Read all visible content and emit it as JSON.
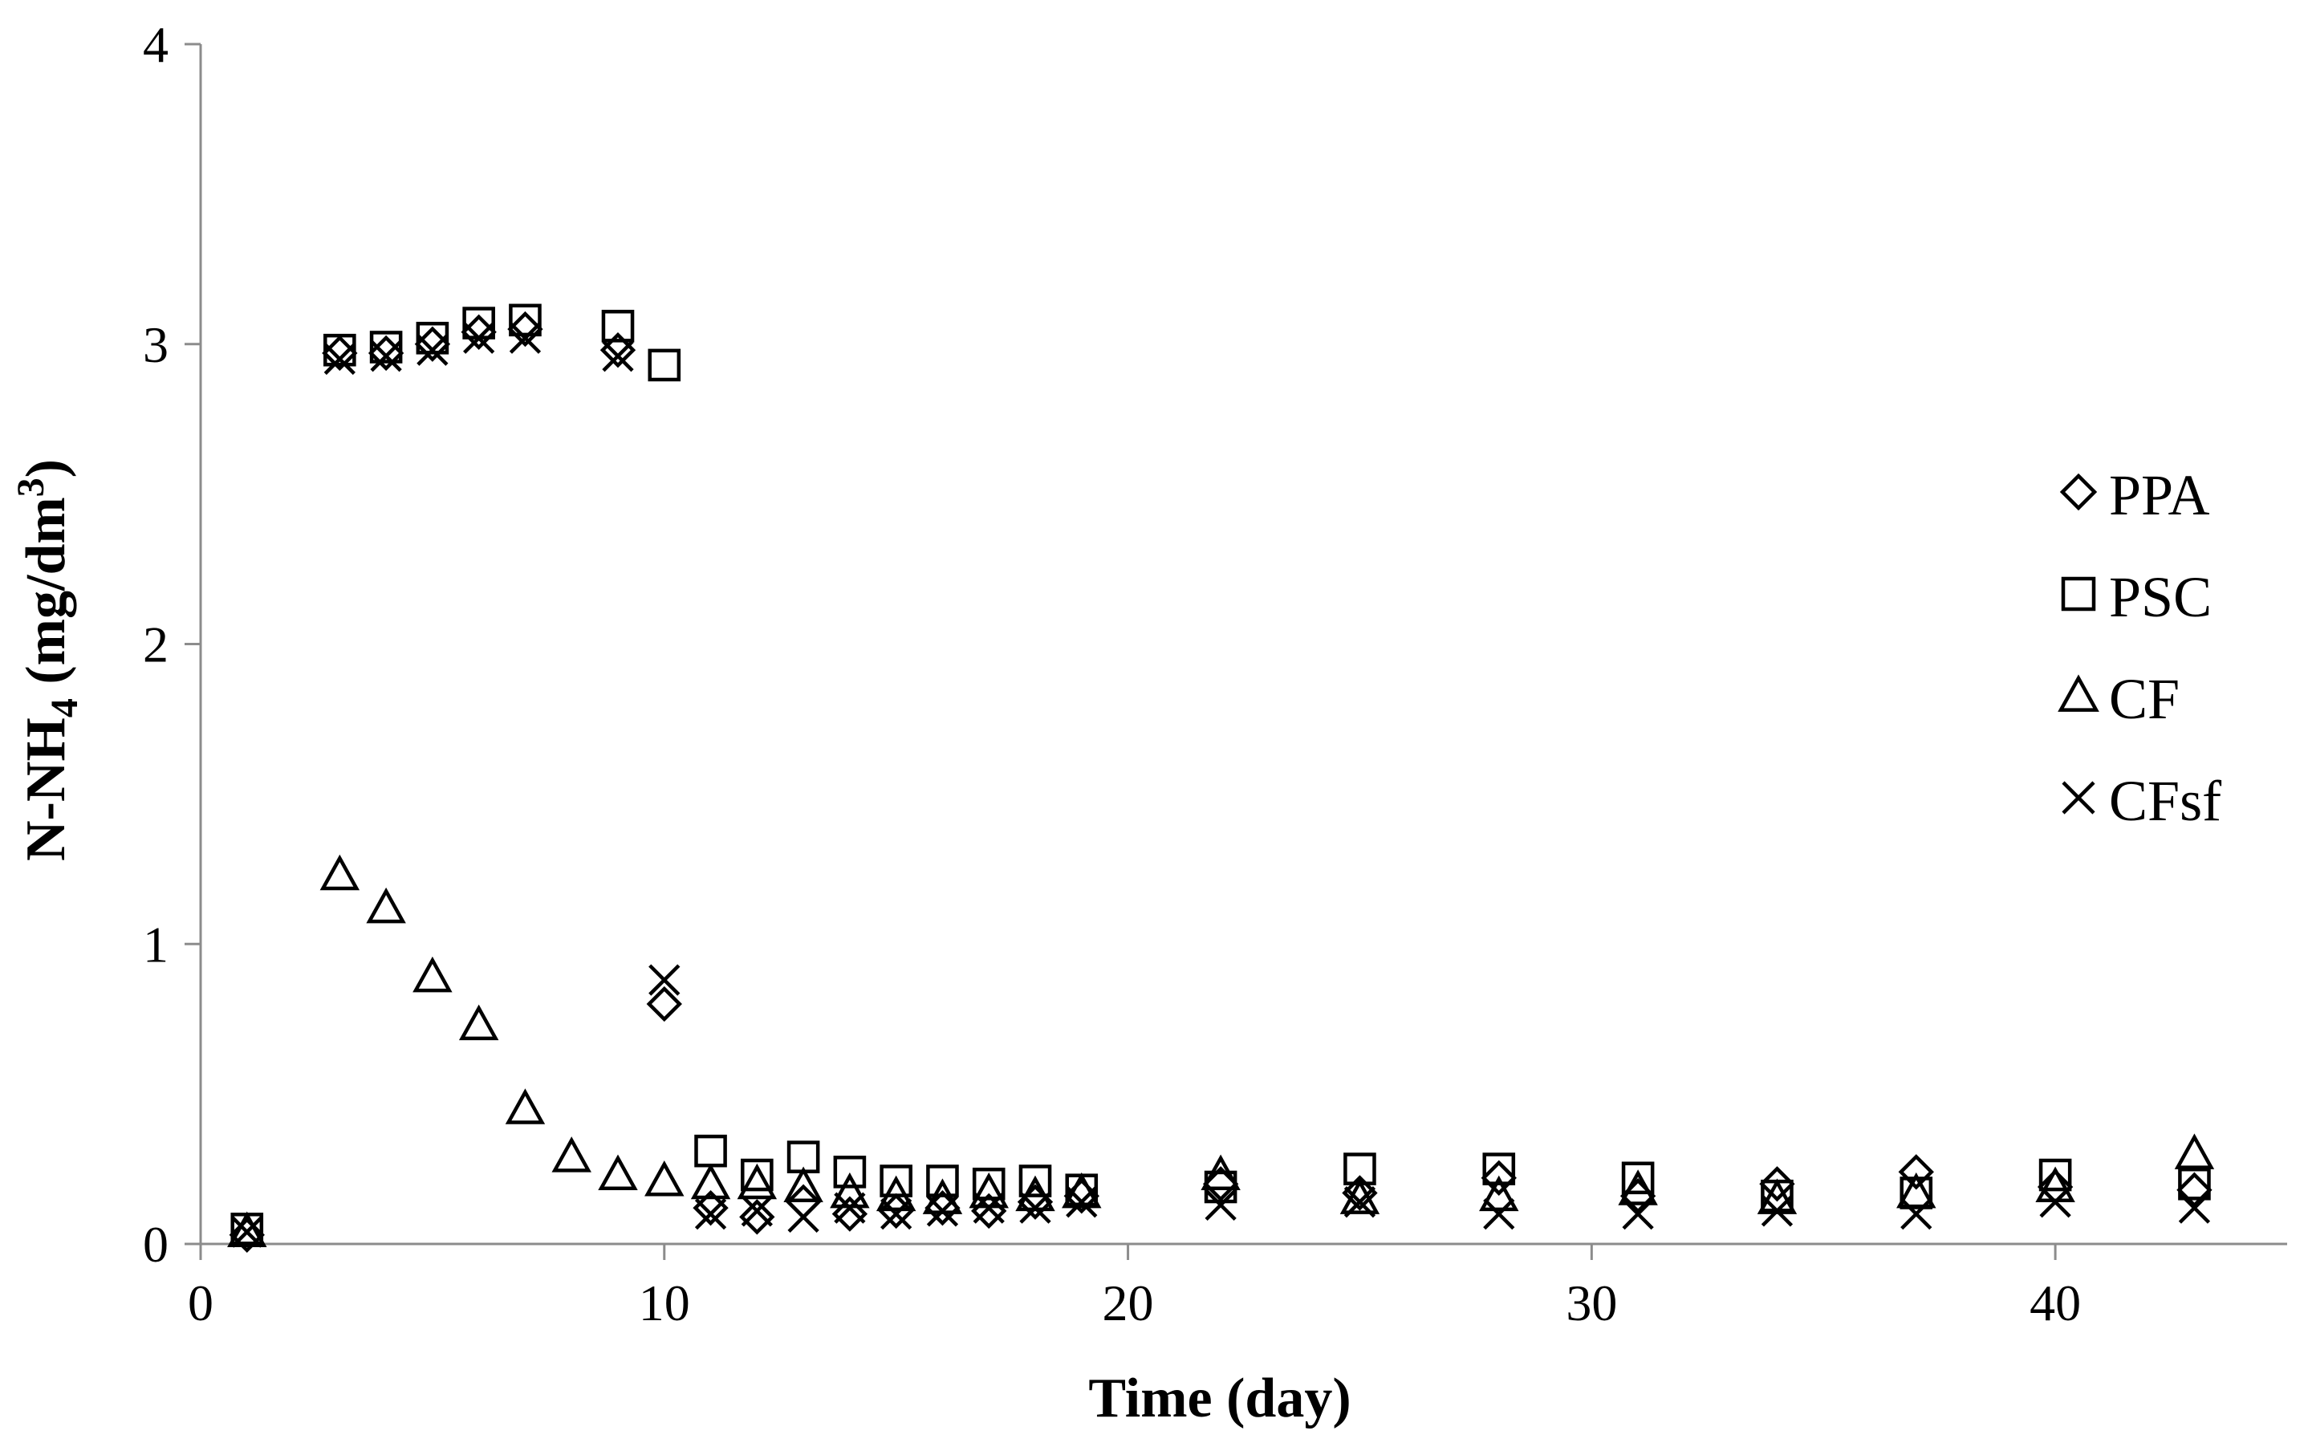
{
  "chart_data": {
    "type": "scatter",
    "xlabel": "Time (day)",
    "ylabel": {
      "prefix": "N-NH",
      "sub": "4",
      "unit_prefix": " (mg/dm",
      "sup": "3",
      "unit_suffix": ")"
    },
    "xlim": [
      0,
      45
    ],
    "ylim": [
      0,
      4
    ],
    "xticks": [
      0,
      10,
      20,
      30,
      40
    ],
    "yticks": [
      0,
      1,
      2,
      3,
      4
    ],
    "grid": false,
    "legend_position": "right",
    "series": [
      {
        "name": "PPA",
        "marker": "diamond",
        "x": [
          1,
          3,
          4,
          5,
          6,
          7,
          9,
          10,
          11,
          12,
          13,
          14,
          15,
          16,
          17,
          18,
          19,
          22,
          25,
          28,
          31,
          34,
          37,
          40,
          43
        ],
        "y": [
          0.03,
          2.97,
          2.97,
          3.0,
          3.04,
          3.05,
          2.98,
          0.8,
          0.12,
          0.09,
          0.14,
          0.1,
          0.11,
          0.12,
          0.11,
          0.14,
          0.16,
          0.2,
          0.17,
          0.22,
          0.16,
          0.2,
          0.24,
          0.19,
          0.18
        ]
      },
      {
        "name": "PSC",
        "marker": "square",
        "x": [
          1,
          3,
          4,
          5,
          6,
          7,
          9,
          10,
          11,
          12,
          13,
          14,
          15,
          16,
          17,
          18,
          19,
          22,
          25,
          28,
          31,
          34,
          37,
          40,
          43
        ],
        "y": [
          0.05,
          2.98,
          2.99,
          3.02,
          3.07,
          3.08,
          3.06,
          2.93,
          0.31,
          0.23,
          0.29,
          0.24,
          0.21,
          0.21,
          0.2,
          0.21,
          0.18,
          0.19,
          0.25,
          0.25,
          0.22,
          0.16,
          0.17,
          0.23,
          0.2
        ]
      },
      {
        "name": "CF",
        "marker": "triangle",
        "x": [
          1,
          3,
          4,
          5,
          6,
          7,
          8,
          9,
          10,
          11,
          12,
          13,
          14,
          15,
          16,
          17,
          18,
          19,
          22,
          25,
          28,
          31,
          34,
          37,
          40,
          43
        ],
        "y": [
          0.04,
          1.23,
          1.12,
          0.89,
          0.73,
          0.45,
          0.29,
          0.23,
          0.21,
          0.2,
          0.2,
          0.19,
          0.17,
          0.16,
          0.15,
          0.17,
          0.16,
          0.17,
          0.23,
          0.15,
          0.16,
          0.18,
          0.15,
          0.17,
          0.19,
          0.3
        ]
      },
      {
        "name": "CFsf",
        "marker": "cross",
        "x": [
          1,
          3,
          4,
          5,
          6,
          7,
          9,
          10,
          11,
          12,
          13,
          14,
          15,
          16,
          17,
          18,
          19,
          22,
          25,
          28,
          31,
          34,
          37,
          40,
          43
        ],
        "y": [
          0.04,
          2.95,
          2.96,
          2.98,
          3.02,
          3.02,
          2.96,
          0.88,
          0.1,
          0.11,
          0.09,
          0.12,
          0.1,
          0.11,
          0.12,
          0.12,
          0.14,
          0.13,
          0.14,
          0.1,
          0.1,
          0.11,
          0.1,
          0.14,
          0.12
        ]
      }
    ]
  }
}
